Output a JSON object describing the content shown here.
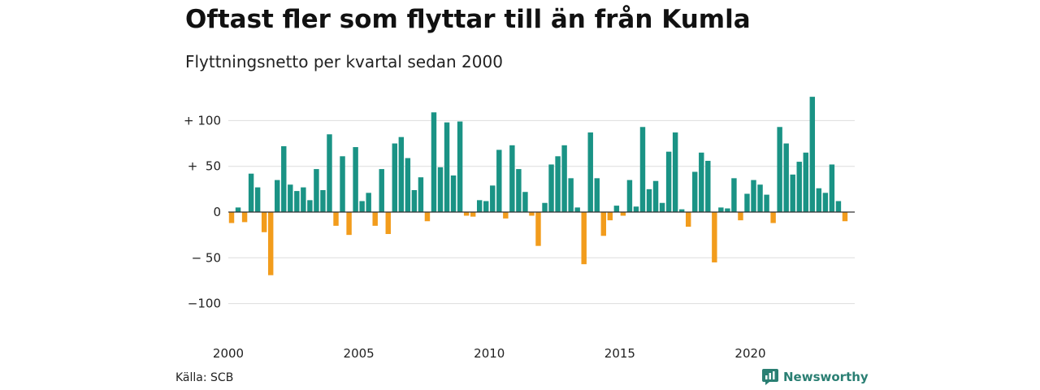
{
  "header": {
    "title": "Oftast fler som flyttar till än från Kumla",
    "subtitle": "Flyttningsnetto per kvartal sedan 2000"
  },
  "footer": {
    "source": "Källa: SCB",
    "brand": "Newsworthy"
  },
  "colors": {
    "positive": "#1a9385",
    "negative": "#f29c1c",
    "grid": "#dddddd",
    "zero_line": "#333333"
  },
  "chart_data": {
    "type": "bar",
    "title": "Oftast fler som flyttar till än från Kumla",
    "subtitle": "Flyttningsnetto per kvartal sedan 2000",
    "xlabel": "",
    "ylabel": "",
    "ylim": [
      -125,
      130
    ],
    "y_ticks": [
      {
        "value": 100,
        "label": "+ 100"
      },
      {
        "value": 50,
        "label": "+  50"
      },
      {
        "value": 0,
        "label": "0"
      },
      {
        "value": -50,
        "label": "− 50"
      },
      {
        "value": -100,
        "label": "−100"
      }
    ],
    "x_ticks": [
      "2000",
      "2005",
      "2010",
      "2015",
      "2020"
    ],
    "x_tick_positions": [
      2000,
      2005,
      2010,
      2015,
      2020
    ],
    "start": "2000-Q1",
    "quarters": [
      "2000-Q1",
      "2000-Q2",
      "2000-Q3",
      "2000-Q4",
      "2001-Q1",
      "2001-Q2",
      "2001-Q3",
      "2001-Q4",
      "2002-Q1",
      "2002-Q2",
      "2002-Q3",
      "2002-Q4",
      "2003-Q1",
      "2003-Q2",
      "2003-Q3",
      "2003-Q4",
      "2004-Q1",
      "2004-Q2",
      "2004-Q3",
      "2004-Q4",
      "2005-Q1",
      "2005-Q2",
      "2005-Q3",
      "2005-Q4",
      "2006-Q1",
      "2006-Q2",
      "2006-Q3",
      "2006-Q4",
      "2007-Q1",
      "2007-Q2",
      "2007-Q3",
      "2007-Q4",
      "2008-Q1",
      "2008-Q2",
      "2008-Q3",
      "2008-Q4",
      "2009-Q1",
      "2009-Q2",
      "2009-Q3",
      "2009-Q4",
      "2010-Q1",
      "2010-Q2",
      "2010-Q3",
      "2010-Q4",
      "2011-Q1",
      "2011-Q2",
      "2011-Q3",
      "2011-Q4",
      "2012-Q1",
      "2012-Q2",
      "2012-Q3",
      "2012-Q4",
      "2013-Q1",
      "2013-Q2",
      "2013-Q3",
      "2013-Q4",
      "2014-Q1",
      "2014-Q2",
      "2014-Q3",
      "2014-Q4",
      "2015-Q1",
      "2015-Q2",
      "2015-Q3",
      "2015-Q4",
      "2016-Q1",
      "2016-Q2",
      "2016-Q3",
      "2016-Q4",
      "2017-Q1",
      "2017-Q2",
      "2017-Q3",
      "2017-Q4",
      "2018-Q1",
      "2018-Q2",
      "2018-Q3",
      "2018-Q4",
      "2019-Q1",
      "2019-Q2",
      "2019-Q3",
      "2019-Q4",
      "2020-Q1",
      "2020-Q2",
      "2020-Q3",
      "2020-Q4",
      "2021-Q1",
      "2021-Q2",
      "2021-Q3",
      "2021-Q4",
      "2022-Q1",
      "2022-Q2",
      "2022-Q3",
      "2022-Q4",
      "2023-Q1",
      "2023-Q2",
      "2023-Q3",
      "2023-Q4"
    ],
    "values": [
      -12,
      5,
      -11,
      42,
      27,
      -22,
      -69,
      35,
      72,
      30,
      23,
      27,
      13,
      47,
      24,
      85,
      -15,
      61,
      -25,
      71,
      12,
      21,
      -15,
      47,
      -24,
      75,
      82,
      59,
      24,
      38,
      -10,
      109,
      49,
      98,
      40,
      99,
      -4,
      -5,
      13,
      12,
      29,
      68,
      -7,
      73,
      47,
      22,
      -4,
      -37,
      10,
      52,
      61,
      73,
      37,
      5,
      -57,
      87,
      37,
      -26,
      -9,
      7,
      -4,
      35,
      6,
      93,
      25,
      34,
      10,
      66,
      87,
      3,
      -16,
      44,
      65,
      56,
      -55,
      5,
      4,
      37,
      -9,
      20,
      35,
      30,
      19,
      -12,
      93,
      75,
      41,
      55,
      65,
      126,
      26,
      21,
      52,
      12,
      -10,
      null
    ]
  }
}
